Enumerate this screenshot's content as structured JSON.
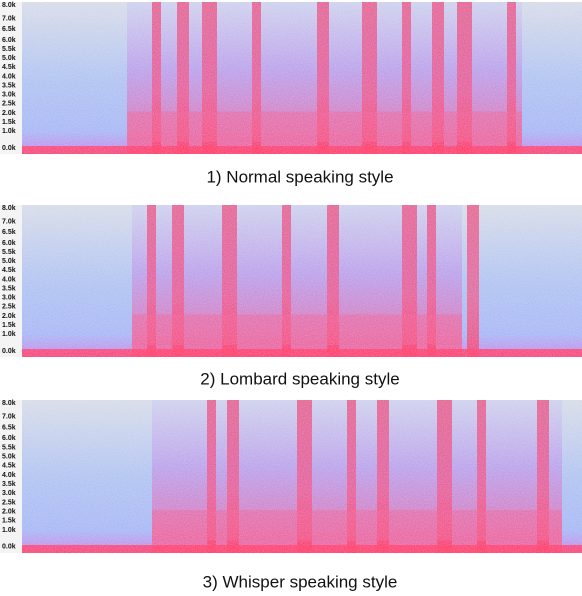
{
  "panels": [
    {
      "caption": "1) Normal speaking style",
      "y_labels": [
        "8.0k",
        "7.0k",
        "6.5k",
        "6.0k",
        "5.5k",
        "5.0k",
        "4.5k",
        "4.0k",
        "3.5k",
        "3.0k",
        "2.5k",
        "2.0k",
        "1.5k",
        "1.0k",
        "0.0k"
      ]
    },
    {
      "caption": "2) Lombard speaking style",
      "y_labels": [
        "8.0k",
        "7.0k",
        "6.5k",
        "6.0k",
        "5.5k",
        "5.0k",
        "4.5k",
        "4.0k",
        "3.5k",
        "3.0k",
        "2.5k",
        "2.0k",
        "1.5k",
        "1.0k",
        "0.0k"
      ]
    },
    {
      "caption": "3) Whisper speaking style",
      "y_labels": [
        "8.0k",
        "7.0k",
        "6.5k",
        "6.0k",
        "5.5k",
        "5.0k",
        "4.5k",
        "4.0k",
        "3.5k",
        "3.0k",
        "2.5k",
        "2.0k",
        "1.5k",
        "1.0k",
        "0.0k"
      ]
    }
  ]
}
